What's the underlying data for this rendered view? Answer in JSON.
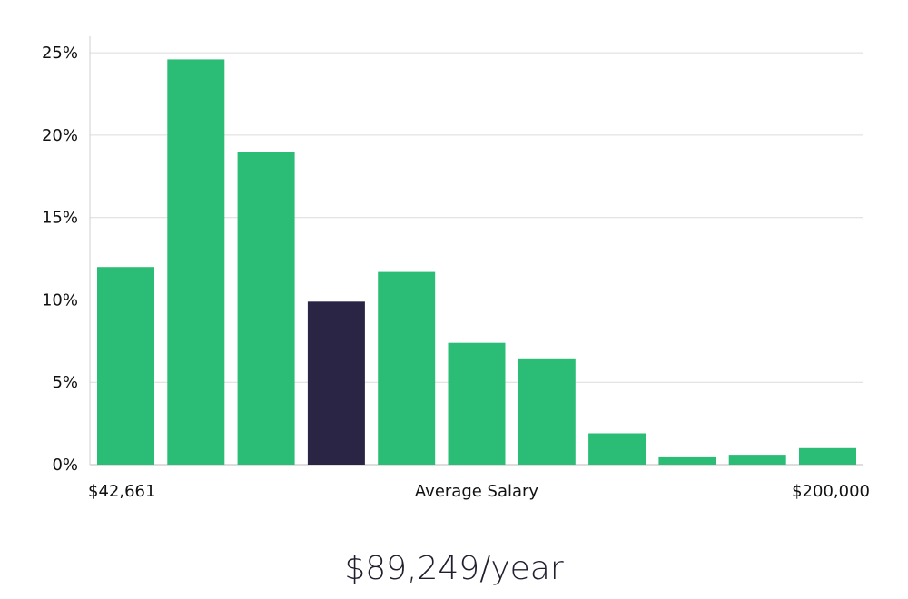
{
  "chart_data": {
    "type": "bar",
    "x_label_left": "$42,661",
    "x_label_center": "Average Salary",
    "x_label_right": "$200,000",
    "y_tick_labels": [
      "0%",
      "5%",
      "10%",
      "15%",
      "20%",
      "25%"
    ],
    "ylim": [
      0,
      26
    ],
    "grid": true,
    "values": [
      12.0,
      24.6,
      19.0,
      9.9,
      11.7,
      7.4,
      6.4,
      1.9,
      0.5,
      0.6,
      1.0
    ],
    "highlight_index": 3,
    "colors": {
      "bar": "#2bbd76",
      "highlight": "#2a2545",
      "grid": "#dcdcdc",
      "axis": "#bbbbbb",
      "text": "#111111"
    }
  },
  "caption": "$89,249/year"
}
